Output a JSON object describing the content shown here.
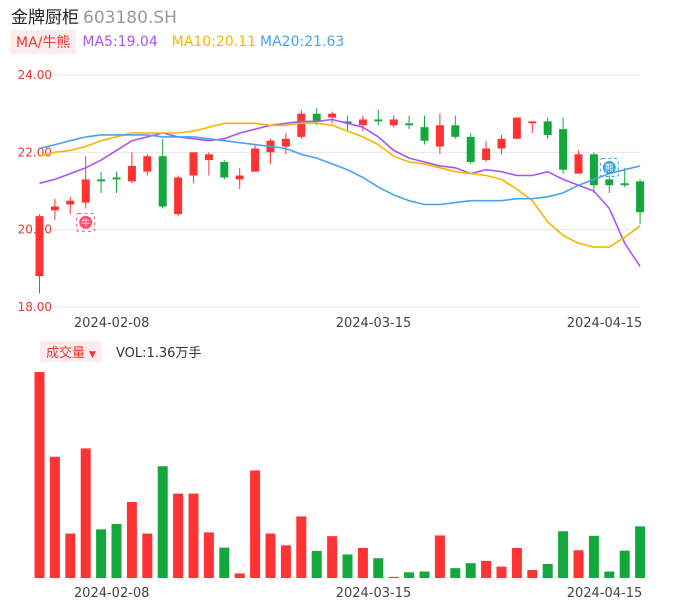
{
  "stock": {
    "name": "金牌厨柜",
    "code": "603180.SH"
  },
  "ma_legend": {
    "tag": "MA/牛熊",
    "ma5": "MA5:19.04",
    "ma10": "MA10:20.11",
    "ma20": "MA20:21.63"
  },
  "colors": {
    "up": "#ff3333",
    "down": "#14a83c",
    "ma5": "#a855f7",
    "ma10": "#f5b800",
    "ma20": "#4aa3ee",
    "grid": "#e6e6e6"
  },
  "signals": [
    {
      "label": "牛",
      "index": 3,
      "color": "#ff4d6d",
      "icon": "bull-signal-icon"
    },
    {
      "label": "熊",
      "index": 37,
      "color": "#2fa8e8",
      "icon": "bear-signal-icon"
    }
  ],
  "volume_legend": {
    "tag": "成交量",
    "text": "VOL:1.36万手"
  },
  "chart_data": [
    {
      "type": "candlestick",
      "ylim": [
        18,
        24
      ],
      "y_ticks": [
        "24.00",
        "22.00",
        "20.00",
        "18.00"
      ],
      "x_ticks": [
        {
          "label": "2024-02-08",
          "index": 3
        },
        {
          "label": "2024-03-15",
          "index": 20
        },
        {
          "label": "2024-04-15",
          "index": 35
        }
      ],
      "candles": [
        {
          "o": 18.8,
          "c": 20.35,
          "h": 20.4,
          "l": 18.35
        },
        {
          "o": 20.5,
          "c": 20.6,
          "h": 20.8,
          "l": 20.25
        },
        {
          "o": 20.65,
          "c": 20.75,
          "h": 20.85,
          "l": 20.4
        },
        {
          "o": 20.7,
          "c": 21.3,
          "h": 21.9,
          "l": 20.55
        },
        {
          "o": 21.3,
          "c": 21.25,
          "h": 21.5,
          "l": 20.95
        },
        {
          "o": 21.35,
          "c": 21.3,
          "h": 21.5,
          "l": 20.95
        },
        {
          "o": 21.25,
          "c": 21.65,
          "h": 22.0,
          "l": 21.2
        },
        {
          "o": 21.5,
          "c": 21.9,
          "h": 21.95,
          "l": 21.4
        },
        {
          "o": 21.9,
          "c": 20.6,
          "h": 22.35,
          "l": 20.55
        },
        {
          "o": 20.4,
          "c": 21.35,
          "h": 21.4,
          "l": 20.35
        },
        {
          "o": 21.4,
          "c": 22.0,
          "h": 22.0,
          "l": 21.2
        },
        {
          "o": 21.8,
          "c": 21.95,
          "h": 22.0,
          "l": 21.4
        },
        {
          "o": 21.75,
          "c": 21.35,
          "h": 21.8,
          "l": 21.3
        },
        {
          "o": 21.3,
          "c": 21.4,
          "h": 21.6,
          "l": 21.05
        },
        {
          "o": 21.5,
          "c": 22.1,
          "h": 22.2,
          "l": 21.5
        },
        {
          "o": 22.0,
          "c": 22.3,
          "h": 22.35,
          "l": 21.7
        },
        {
          "o": 22.15,
          "c": 22.35,
          "h": 22.5,
          "l": 21.95
        },
        {
          "o": 22.4,
          "c": 23.0,
          "h": 23.1,
          "l": 22.35
        },
        {
          "o": 23.0,
          "c": 22.8,
          "h": 23.15,
          "l": 22.7
        },
        {
          "o": 22.9,
          "c": 23.0,
          "h": 23.05,
          "l": 22.75
        },
        {
          "o": 22.8,
          "c": 22.75,
          "h": 22.95,
          "l": 22.55
        },
        {
          "o": 22.7,
          "c": 22.85,
          "h": 22.95,
          "l": 22.55
        },
        {
          "o": 22.85,
          "c": 22.8,
          "h": 23.1,
          "l": 22.7
        },
        {
          "o": 22.7,
          "c": 22.85,
          "h": 22.95,
          "l": 22.65
        },
        {
          "o": 22.75,
          "c": 22.7,
          "h": 22.95,
          "l": 22.6
        },
        {
          "o": 22.65,
          "c": 22.3,
          "h": 22.95,
          "l": 22.2
        },
        {
          "o": 22.15,
          "c": 22.7,
          "h": 23.0,
          "l": 21.95
        },
        {
          "o": 22.7,
          "c": 22.4,
          "h": 22.95,
          "l": 22.35
        },
        {
          "o": 22.4,
          "c": 21.75,
          "h": 22.5,
          "l": 21.7
        },
        {
          "o": 21.8,
          "c": 22.1,
          "h": 22.3,
          "l": 21.75
        },
        {
          "o": 22.1,
          "c": 22.35,
          "h": 22.45,
          "l": 21.95
        },
        {
          "o": 22.35,
          "c": 22.9,
          "h": 22.9,
          "l": 22.35
        },
        {
          "o": 22.75,
          "c": 22.8,
          "h": 22.8,
          "l": 22.5
        },
        {
          "o": 22.8,
          "c": 22.45,
          "h": 22.9,
          "l": 22.35
        },
        {
          "o": 22.6,
          "c": 21.55,
          "h": 22.9,
          "l": 21.45
        },
        {
          "o": 21.45,
          "c": 21.95,
          "h": 22.05,
          "l": 21.45
        },
        {
          "o": 21.95,
          "c": 21.15,
          "h": 22.0,
          "l": 20.95
        },
        {
          "o": 21.3,
          "c": 21.15,
          "h": 21.4,
          "l": 20.95
        },
        {
          "o": 21.2,
          "c": 21.15,
          "h": 21.6,
          "l": 21.1
        },
        {
          "o": 21.25,
          "c": 20.45,
          "h": 21.3,
          "l": 20.15
        }
      ],
      "ma5": [
        21.2,
        21.3,
        21.45,
        21.6,
        21.8,
        22.05,
        22.3,
        22.4,
        22.5,
        22.4,
        22.35,
        22.3,
        22.35,
        22.5,
        22.6,
        22.7,
        22.75,
        22.8,
        22.8,
        22.85,
        22.75,
        22.65,
        22.4,
        22.05,
        21.85,
        21.75,
        21.65,
        21.6,
        21.45,
        21.55,
        21.5,
        21.4,
        21.4,
        21.5,
        21.3,
        21.15,
        21.0,
        20.55,
        19.65,
        19.05
      ],
      "ma10": [
        21.9,
        22.0,
        22.05,
        22.15,
        22.3,
        22.4,
        22.5,
        22.5,
        22.5,
        22.5,
        22.55,
        22.65,
        22.75,
        22.75,
        22.75,
        22.7,
        22.7,
        22.75,
        22.75,
        22.7,
        22.55,
        22.4,
        22.2,
        21.9,
        21.75,
        21.7,
        21.6,
        21.5,
        21.45,
        21.4,
        21.3,
        21.05,
        20.75,
        20.2,
        19.85,
        19.65,
        19.55,
        19.55,
        19.8,
        20.1
      ],
      "ma20": [
        22.1,
        22.2,
        22.3,
        22.4,
        22.45,
        22.45,
        22.45,
        22.45,
        22.4,
        22.4,
        22.4,
        22.35,
        22.3,
        22.25,
        22.2,
        22.15,
        22.1,
        21.95,
        21.85,
        21.7,
        21.55,
        21.35,
        21.1,
        20.9,
        20.75,
        20.65,
        20.65,
        20.7,
        20.75,
        20.75,
        20.75,
        20.8,
        20.8,
        20.85,
        20.95,
        21.15,
        21.3,
        21.45,
        21.55,
        21.65
      ]
    },
    {
      "type": "bar",
      "title": "成交量",
      "unit": "万手",
      "x_ticks": [
        {
          "label": "2024-02-08",
          "index": 3
        },
        {
          "label": "2024-03-15",
          "index": 20
        },
        {
          "label": "2024-04-15",
          "index": 35
        }
      ],
      "values": [
        5.42,
        3.19,
        1.17,
        3.41,
        1.28,
        1.42,
        2.0,
        1.17,
        2.94,
        2.22,
        2.22,
        1.2,
        0.8,
        0.12,
        2.83,
        1.17,
        0.86,
        1.62,
        0.71,
        1.1,
        0.62,
        0.79,
        0.52,
        0.03,
        0.15,
        0.17,
        1.12,
        0.26,
        0.39,
        0.45,
        0.3,
        0.79,
        0.21,
        0.37,
        1.23,
        0.73,
        1.11,
        0.17,
        0.72,
        1.36
      ]
    }
  ]
}
